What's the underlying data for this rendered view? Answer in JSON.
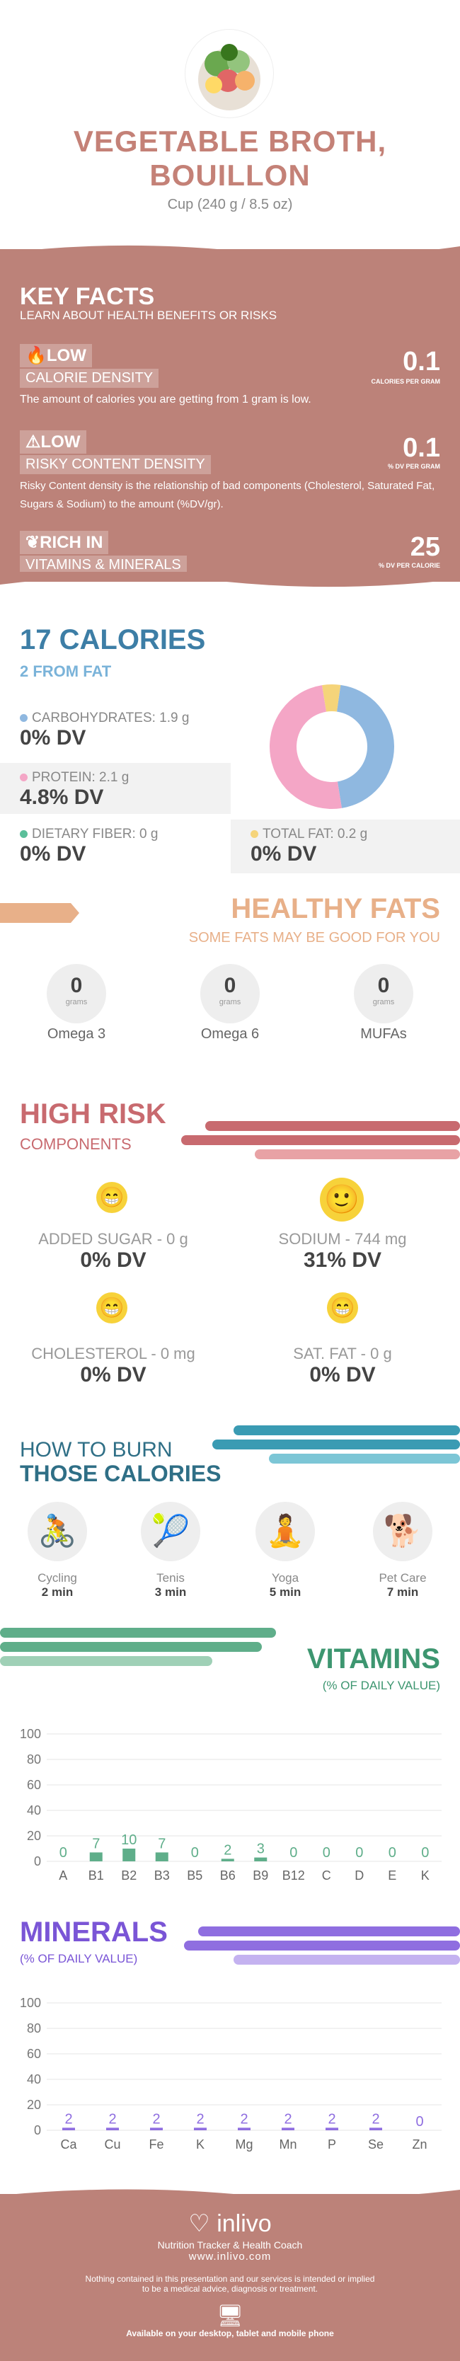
{
  "header": {
    "title_line1": "VEGETABLE BROTH,",
    "title_line2": "BOUILLON",
    "serving": "Cup (240 g / 8.5 oz)"
  },
  "key_facts": {
    "title": "KEY FACTS",
    "subtitle": "LEARN ABOUT HEALTH BENEFITS OR RISKS",
    "items": [
      {
        "level": "LOW",
        "label": "CALORIE DENSITY",
        "value": "0.1",
        "unit": "CALORIES PER GRAM",
        "desc": "The amount of calories you are getting from 1 gram is low.",
        "icon": "flame-icon"
      },
      {
        "level": "LOW",
        "label": "RISKY CONTENT DENSITY",
        "value": "0.1",
        "unit": "% DV PER GRAM",
        "desc": "Risky Content density is the relationship of bad components (Cholesterol, Saturated Fat, Sugars & Sodium) to the amount (%DV/gr).",
        "icon": "warning-icon"
      },
      {
        "level": "RICH  IN",
        "label": "VITAMINS & MINERALS",
        "value": "25",
        "unit": "% DV PER CALORIE",
        "desc": "",
        "icon": "leaf-icon"
      }
    ]
  },
  "calories": {
    "title": "17 CALORIES",
    "from_fat": "2 FROM FAT",
    "nutrients": [
      {
        "label": "CARBOHYDRATES: 1.9 g",
        "dv": "0% DV",
        "color": "#8fb8e0"
      },
      {
        "label": "PROTEIN: 2.1 g",
        "dv": "4.8% DV",
        "color": "#f4a6c6"
      },
      {
        "label": "DIETARY FIBER: 0 g",
        "dv": "0% DV",
        "color": "#5bbf9a"
      },
      {
        "label": "TOTAL FAT: 0.2 g",
        "dv": "0% DV",
        "color": "#f5d47a"
      }
    ],
    "donut": [
      {
        "name": "carbs",
        "value": 1.9,
        "color": "#8fb8e0"
      },
      {
        "name": "protein",
        "value": 2.1,
        "color": "#f4a6c6"
      },
      {
        "name": "fat",
        "value": 0.2,
        "color": "#f5d47a"
      }
    ]
  },
  "fats": {
    "title": "HEALTHY FATS",
    "subtitle": "SOME FATS MAY BE GOOD FOR YOU",
    "items": [
      {
        "value": "0",
        "unit": "grams",
        "label": "Omega 3"
      },
      {
        "value": "0",
        "unit": "grams",
        "label": "Omega 6"
      },
      {
        "value": "0",
        "unit": "grams",
        "label": "MUFAs"
      }
    ]
  },
  "risk": {
    "title": "HIGH RISK",
    "subtitle": "COMPONENTS",
    "items": [
      {
        "label": "ADDED SUGAR - 0 g",
        "dv": "0% DV",
        "icon": "happy-face-icon"
      },
      {
        "label": "SODIUM - 744 mg",
        "dv": "31% DV",
        "icon": "neutral-face-icon"
      },
      {
        "label": "CHOLESTEROL - 0 mg",
        "dv": "0% DV",
        "icon": "happy-face-icon"
      },
      {
        "label": "SAT. FAT - 0 g",
        "dv": "0% DV",
        "icon": "happy-face-icon"
      }
    ]
  },
  "burn": {
    "title1": "HOW TO BURN",
    "title2": "THOSE CALORIES",
    "items": [
      {
        "name": "Cycling",
        "time": "2 min"
      },
      {
        "name": "Tenis",
        "time": "3 min"
      },
      {
        "name": "Yoga",
        "time": "5 min"
      },
      {
        "name": "Pet Care",
        "time": "7 min"
      }
    ]
  },
  "vitamins": {
    "title": "VITAMINS",
    "subtitle": "(% OF DAILY VALUE)"
  },
  "minerals": {
    "title": "MINERALS",
    "subtitle": "(% OF DAILY VALUE)"
  },
  "chart_data": [
    {
      "type": "bar",
      "title": "VITAMINS",
      "ylim": [
        0,
        100
      ],
      "yticks": [
        0,
        20,
        40,
        60,
        80,
        100
      ],
      "categories": [
        "A",
        "B1",
        "B2",
        "B3",
        "B5",
        "B6",
        "B9",
        "B12",
        "C",
        "D",
        "E",
        "K"
      ],
      "values": [
        0,
        7,
        10,
        7,
        0,
        2,
        3,
        0,
        0,
        0,
        0,
        0
      ],
      "color": "#5fae8a"
    },
    {
      "type": "bar",
      "title": "MINERALS",
      "ylim": [
        0,
        100
      ],
      "yticks": [
        0,
        20,
        40,
        60,
        80,
        100
      ],
      "categories": [
        "Ca",
        "Cu",
        "Fe",
        "K",
        "Mg",
        "Mn",
        "P",
        "Se",
        "Zn"
      ],
      "values": [
        2,
        2,
        2,
        2,
        2,
        2,
        2,
        2,
        0
      ],
      "color": "#8f6ee0"
    }
  ],
  "footer": {
    "brand": "inlivo",
    "tagline": "Nutrition Tracker & Health Coach",
    "url": "www.inlivo.com",
    "disclaimer1": "Nothing contained in this presentation and our services is intended or implied",
    "disclaimer2": "to be a medical advice, diagnosis or treatment.",
    "available": "Available on your desktop, tablet and mobile phone"
  }
}
